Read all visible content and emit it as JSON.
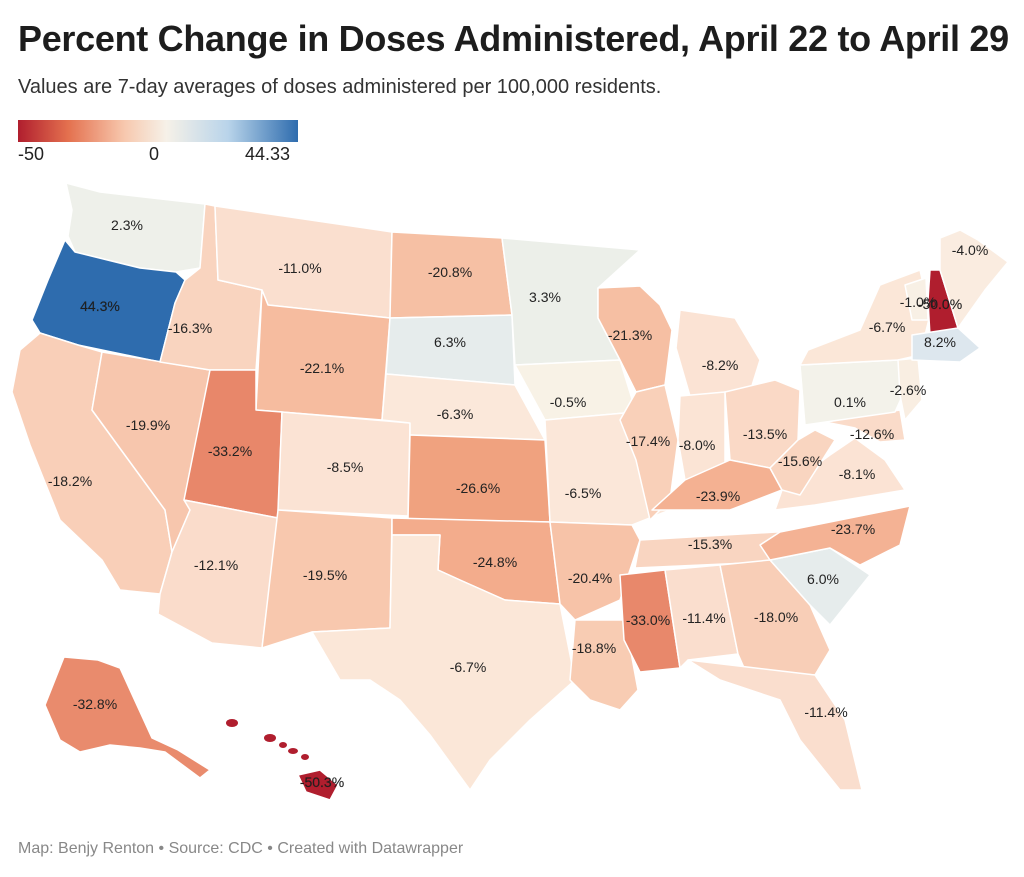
{
  "header": {
    "title": "Percent Change in Doses Administered, April 22 to April 29",
    "subtitle": "Values are 7-day averages of doses administered per 100,000 residents."
  },
  "legend": {
    "min_label": "-50",
    "mid_label": "0",
    "max_label": "44.33",
    "min": -50,
    "mid": 0,
    "max": 44.33,
    "colors": [
      "#b01e2e",
      "#f6f1e8",
      "#2e6cae"
    ]
  },
  "states": [
    {
      "code": "WA",
      "label": "2.3%",
      "value": 2.3,
      "color": "#eef0ea"
    },
    {
      "code": "OR",
      "label": "44.3%",
      "value": 44.3,
      "color": "#2e6cae"
    },
    {
      "code": "CA",
      "label": "-18.2%",
      "value": -18.2,
      "color": "#f9cfb8"
    },
    {
      "code": "NV",
      "label": "-19.9%",
      "value": -19.9,
      "color": "#f7c6ad"
    },
    {
      "code": "ID",
      "label": "-16.3%",
      "value": -16.3,
      "color": "#f9d4bf"
    },
    {
      "code": "MT",
      "label": "-11.0%",
      "value": -11.0,
      "color": "#fadfcf"
    },
    {
      "code": "WY",
      "label": "-22.1%",
      "value": -22.1,
      "color": "#f6bc9f"
    },
    {
      "code": "UT",
      "label": "-33.2%",
      "value": -33.2,
      "color": "#e8876a"
    },
    {
      "code": "AZ",
      "label": "-12.1%",
      "value": -12.1,
      "color": "#fadccb"
    },
    {
      "code": "CO",
      "label": "-8.5%",
      "value": -8.5,
      "color": "#fbe3d4"
    },
    {
      "code": "NM",
      "label": "-19.5%",
      "value": -19.5,
      "color": "#f8c8ae"
    },
    {
      "code": "ND",
      "label": "-20.8%",
      "value": -20.8,
      "color": "#f6c0a4"
    },
    {
      "code": "SD",
      "label": "6.3%",
      "value": 6.3,
      "color": "#e6ecec"
    },
    {
      "code": "NE",
      "label": "-6.3%",
      "value": -6.3,
      "color": "#fbe8da"
    },
    {
      "code": "KS",
      "label": "-26.6%",
      "value": -26.6,
      "color": "#f0a27f"
    },
    {
      "code": "OK",
      "label": "-24.8%",
      "value": -24.8,
      "color": "#f3ac8c"
    },
    {
      "code": "TX",
      "label": "-6.7%",
      "value": -6.7,
      "color": "#fbe7d8"
    },
    {
      "code": "MN",
      "label": "3.3%",
      "value": 3.3,
      "color": "#ecefe9"
    },
    {
      "code": "IA",
      "label": "-0.5%",
      "value": -0.5,
      "color": "#f8f2e6"
    },
    {
      "code": "MO",
      "label": "-6.5%",
      "value": -6.5,
      "color": "#fbe7d9"
    },
    {
      "code": "AR",
      "label": "-20.4%",
      "value": -20.4,
      "color": "#f7c3a8"
    },
    {
      "code": "LA",
      "label": "-18.8%",
      "value": -18.8,
      "color": "#f8ccb3"
    },
    {
      "code": "WI",
      "label": "-21.3%",
      "value": -21.3,
      "color": "#f6bfa3"
    },
    {
      "code": "IL",
      "label": "-17.4%",
      "value": -17.4,
      "color": "#f9d0b9"
    },
    {
      "code": "MI",
      "label": "-8.2%",
      "value": -8.2,
      "color": "#fbe3d4"
    },
    {
      "code": "IN",
      "label": "-8.0%",
      "value": -8.0,
      "color": "#fbe4d5"
    },
    {
      "code": "OH",
      "label": "-13.5%",
      "value": -13.5,
      "color": "#fad9c6"
    },
    {
      "code": "KY",
      "label": "-23.9%",
      "value": -23.9,
      "color": "#f4b192"
    },
    {
      "code": "TN",
      "label": "-15.3%",
      "value": -15.3,
      "color": "#f9d5c1"
    },
    {
      "code": "MS",
      "label": "-33.0%",
      "value": -33.0,
      "color": "#e8886b"
    },
    {
      "code": "AL",
      "label": "-11.4%",
      "value": -11.4,
      "color": "#fadece"
    },
    {
      "code": "GA",
      "label": "-18.0%",
      "value": -18.0,
      "color": "#f8ceb7"
    },
    {
      "code": "FL",
      "label": "-11.4%",
      "value": -11.4,
      "color": "#fadece"
    },
    {
      "code": "SC",
      "label": "6.0%",
      "value": 6.0,
      "color": "#e6ecec"
    },
    {
      "code": "NC",
      "label": "-23.7%",
      "value": -23.7,
      "color": "#f4b294"
    },
    {
      "code": "VA",
      "label": "-8.1%",
      "value": -8.1,
      "color": "#fbe3d4"
    },
    {
      "code": "WV",
      "label": "-15.6%",
      "value": -15.6,
      "color": "#f9d5c0"
    },
    {
      "code": "MD",
      "label": "-12.6%",
      "value": -12.6,
      "color": "#fadbc9"
    },
    {
      "code": "PA",
      "label": "0.1%",
      "value": 0.1,
      "color": "#f3f2ea"
    },
    {
      "code": "NY",
      "label": "-6.7%",
      "value": -6.7,
      "color": "#fbe7d8"
    },
    {
      "code": "NJ",
      "label": "-2.6%",
      "value": -2.6,
      "color": "#f9eee2"
    },
    {
      "code": "VT",
      "label": "-1.0%",
      "value": -1.0,
      "color": "#f8f0e5"
    },
    {
      "code": "NH",
      "label": "-50.0%",
      "value": -50.0,
      "color": "#b01e2e"
    },
    {
      "code": "MA",
      "label": "8.2%",
      "value": 8.2,
      "color": "#dde7ee"
    },
    {
      "code": "ME",
      "label": "-4.0%",
      "value": -4.0,
      "color": "#faece0"
    },
    {
      "code": "AK",
      "label": "-32.8%",
      "value": -32.8,
      "color": "#e98b6d"
    },
    {
      "code": "HI",
      "label": "-50.3%",
      "value": -50.3,
      "color": "#b01e2e"
    }
  ],
  "footer": {
    "credit": "Map: Benjy Renton • Source: CDC • Created with Datawrapper"
  }
}
